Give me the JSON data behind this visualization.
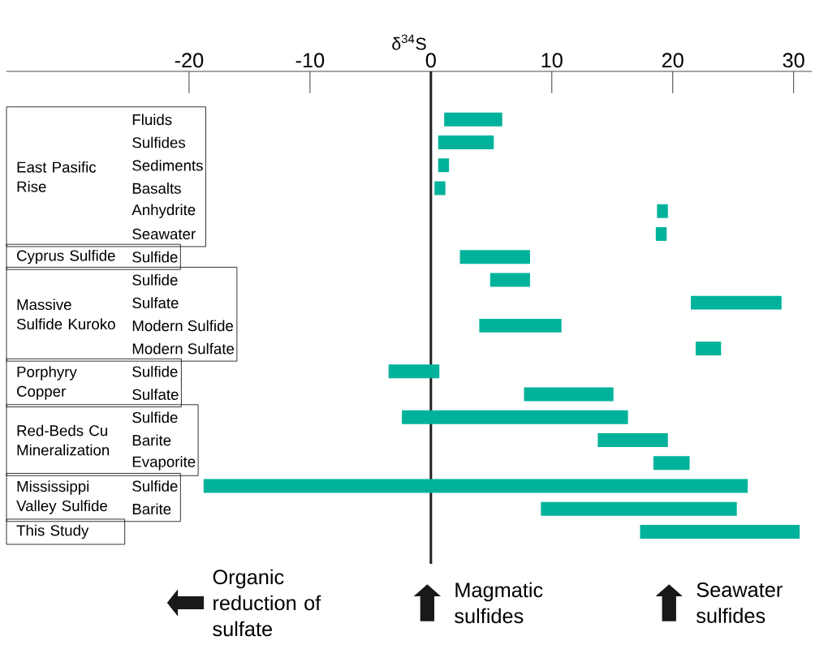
{
  "chart_data": {
    "type": "bar",
    "orientation": "horizontal",
    "xlabel": "δ$^{34}$S",
    "categories": [
      "Fluids",
      "Sulfides",
      "Sediments",
      "Basalts",
      "Anhydrite",
      "Seawater",
      "Sulfide",
      "Sulfide",
      "Sulfate",
      "Modern Sulfide",
      "Modern Sulfate",
      "Sulfide",
      "Sulfate",
      "Sulfide",
      "Barite",
      "Evaporite",
      "Sulfide",
      "Barite",
      null
    ],
    "base": [
      1.1,
      0.6,
      0.6,
      0.3,
      18.7,
      18.6,
      2.4,
      4.9,
      21.5,
      4.0,
      21.9,
      -3.5,
      7.7,
      -2.4,
      13.8,
      18.4,
      -18.8,
      9.1,
      17.3
    ],
    "values": [
      4.8,
      4.6,
      0.9,
      0.9,
      0.9,
      0.9,
      5.8,
      3.3,
      7.5,
      6.8,
      2.1,
      4.2,
      7.4,
      18.7,
      5.8,
      3.0,
      45.0,
      16.2,
      13.2
    ],
    "color": "#00b29b",
    "xlim": [
      -35.1,
      31.5
    ],
    "xticks": [
      -20,
      -10,
      0,
      10,
      20,
      30
    ],
    "grid": false,
    "ref_lines": [
      {
        "axis": "x",
        "value": 0,
        "color": "#231f20"
      }
    ],
    "annotations": [
      "East Pasific Rise",
      "Cyprus Sulfide",
      "Massive Sulfide Kuroko",
      "Porphyry Copper",
      "Red-Beds Cu Mineralization",
      "Mississippi Valley Sulfide",
      "This Study",
      "Organic reduction of sulfate",
      "Magmatic sulfides",
      "Seawater sulfides"
    ]
  }
}
